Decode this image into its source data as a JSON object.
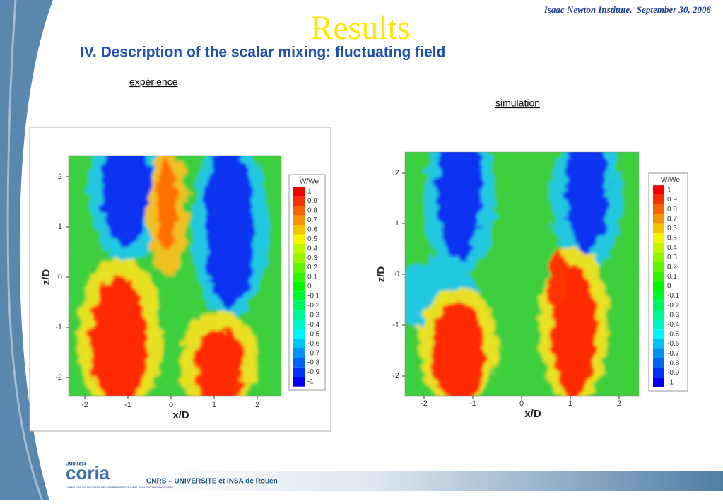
{
  "header": {
    "event": "Isaac Newton Institute,  September 30, 2008",
    "title": "Results",
    "subtitle": "IV. Description of the scalar mixing: fluctuating field"
  },
  "panels": [
    {
      "caption": "expérience",
      "xlabel": "x/D",
      "ylabel": "z/D",
      "xticks": [
        "-2",
        "-1",
        "0",
        "1",
        "2"
      ],
      "yticks": [
        "2",
        "1",
        "0",
        "-1",
        "-2"
      ],
      "colorbar": {
        "title": "W/We",
        "labels": [
          "1",
          "0.9",
          "0.8",
          "0.7",
          "0.6",
          "0.5",
          "0.4",
          "0.3",
          "0.2",
          "0.1",
          "0",
          "-0,1",
          "-0,2",
          "-0,3",
          "-0,4",
          "-0,5",
          "-0,6",
          "-0,7",
          "-0,8",
          "-0,9",
          "-1"
        ]
      }
    },
    {
      "caption": "simulation",
      "xlabel": "x/D",
      "ylabel": "z/D",
      "xticks": [
        "-2",
        "-1",
        "0",
        "1",
        "2"
      ],
      "yticks": [
        "2",
        "1",
        "0",
        "-1",
        "-2"
      ],
      "colorbar": {
        "title": "W/We",
        "labels": [
          "1",
          "0.9",
          "0.8",
          "0.7",
          "0.6",
          "0.5",
          "0.4",
          "0.3",
          "0.2",
          "0.1",
          "0",
          "-0.1",
          "-0.2",
          "-0.3",
          "-0.4",
          "-0.5",
          "-0.6",
          "-0.7",
          "-0.8",
          "-0.9",
          "-1"
        ]
      }
    }
  ],
  "footer": {
    "logo_tag": "UMR 6614",
    "logo": "coria",
    "logo_subtitle": "COMPLEXE DE RECHERCHE INTERPROFESSIONNEL EN AEROTHERMOCHIMIE",
    "affiliation": "CNRS – UNIVERSITE et INSA de Rouen"
  }
}
